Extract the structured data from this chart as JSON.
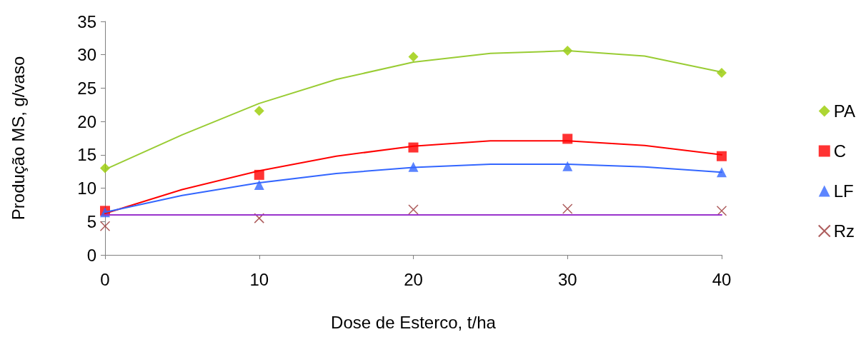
{
  "chart_data": {
    "type": "scatter",
    "xlabel": "Dose de Esterco, t/ha",
    "ylabel": "Produção MS, g/vaso",
    "xlim": [
      0,
      40
    ],
    "xticks": [
      0,
      10,
      20,
      30,
      40
    ],
    "ylim": [
      0,
      35
    ],
    "yticks": [
      0,
      5,
      10,
      15,
      20,
      25,
      30,
      35
    ],
    "grid": false,
    "legend": "right",
    "series": [
      {
        "name": "PA",
        "color": "#99cc00",
        "marker": "diamond",
        "x": [
          0,
          10,
          20,
          30,
          40
        ],
        "values": [
          13.0,
          21.6,
          29.7,
          30.6,
          27.3
        ]
      },
      {
        "name": "C",
        "color": "#ff0000",
        "marker": "square",
        "x": [
          0,
          10,
          20,
          30,
          40
        ],
        "values": [
          6.6,
          12.0,
          16.1,
          17.4,
          14.8
        ]
      },
      {
        "name": "LF",
        "color": "#3366ff",
        "marker": "triangle",
        "x": [
          0,
          10,
          20,
          30,
          40
        ],
        "values": [
          6.4,
          10.5,
          13.2,
          13.3,
          12.4
        ]
      },
      {
        "name": "Rz",
        "color": "#993333",
        "marker": "cross",
        "x": [
          0,
          10,
          20,
          30,
          40
        ],
        "values": [
          4.3,
          5.5,
          6.8,
          6.9,
          6.6
        ]
      },
      {
        "type": "line",
        "color": "#99cc33",
        "marker": "none",
        "x": [
          0,
          5,
          10,
          15,
          20,
          25,
          30,
          35,
          40
        ],
        "values": [
          12.8,
          18.0,
          22.7,
          26.3,
          28.9,
          30.2,
          30.6,
          29.8,
          27.4
        ]
      },
      {
        "type": "line",
        "color": "#ff0000",
        "marker": "none",
        "x": [
          0,
          5,
          10,
          15,
          20,
          25,
          30,
          35,
          40
        ],
        "values": [
          6.2,
          9.8,
          12.6,
          14.8,
          16.3,
          17.1,
          17.1,
          16.4,
          15.0
        ]
      },
      {
        "type": "line",
        "color": "#3366ff",
        "marker": "none",
        "x": [
          0,
          5,
          10,
          15,
          20,
          25,
          30,
          35,
          40
        ],
        "values": [
          6.4,
          8.9,
          10.8,
          12.2,
          13.1,
          13.6,
          13.6,
          13.2,
          12.4
        ]
      },
      {
        "type": "line",
        "color": "#9933cc",
        "marker": "none",
        "x": [
          0,
          40
        ],
        "values": [
          6.0,
          6.0
        ]
      }
    ]
  }
}
